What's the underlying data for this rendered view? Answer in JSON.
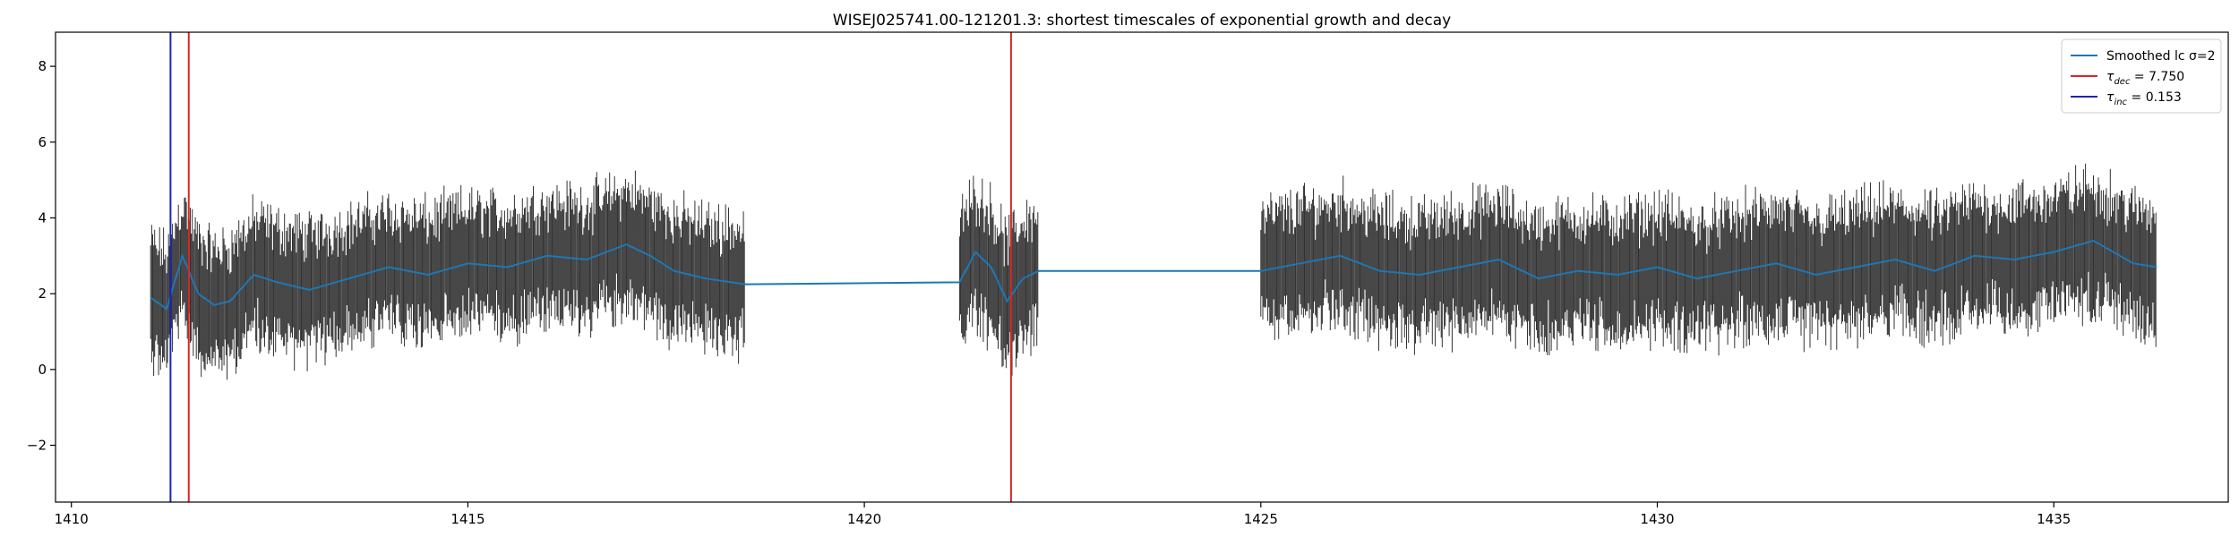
{
  "chart_data": {
    "type": "line",
    "title": "WISEJ025741.00-121201.3: shortest timescales of exponential growth and decay",
    "xlabel": "",
    "ylabel": "",
    "xlim": [
      1409.8,
      1437.2
    ],
    "ylim": [
      -3.5,
      8.9
    ],
    "xticks": [
      1410,
      1415,
      1420,
      1425,
      1430,
      1435
    ],
    "yticks": [
      -2,
      0,
      2,
      4,
      6,
      8
    ],
    "grid": false,
    "legend_position": "top-right",
    "observation_segments": [
      {
        "x_start": 1411.0,
        "x_end": 1418.5,
        "baseline": 2.3,
        "span": 1.4
      },
      {
        "x_start": 1421.2,
        "x_end": 1422.2,
        "baseline": 2.2,
        "span": 1.5
      },
      {
        "x_start": 1425.0,
        "x_end": 1436.3,
        "baseline": 2.6,
        "span": 1.4
      }
    ],
    "series": [
      {
        "name": "Smoothed lc σ=2",
        "color": "#1f77b4",
        "x": [
          1411.0,
          1411.2,
          1411.4,
          1411.6,
          1411.8,
          1412.0,
          1412.3,
          1412.6,
          1413.0,
          1413.5,
          1414.0,
          1414.5,
          1415.0,
          1415.5,
          1416.0,
          1416.5,
          1417.0,
          1417.3,
          1417.6,
          1418.0,
          1418.5,
          1421.2,
          1421.4,
          1421.6,
          1421.8,
          1422.0,
          1422.2,
          1425.0,
          1425.5,
          1426.0,
          1426.5,
          1427.0,
          1427.5,
          1428.0,
          1428.5,
          1429.0,
          1429.5,
          1430.0,
          1430.5,
          1431.0,
          1431.5,
          1432.0,
          1432.5,
          1433.0,
          1433.5,
          1434.0,
          1434.5,
          1435.0,
          1435.5,
          1436.0,
          1436.3
        ],
        "y": [
          1.9,
          1.6,
          3.0,
          2.0,
          1.7,
          1.8,
          2.5,
          2.3,
          2.1,
          2.4,
          2.7,
          2.5,
          2.8,
          2.7,
          3.0,
          2.9,
          3.3,
          3.0,
          2.6,
          2.4,
          2.25,
          2.3,
          3.1,
          2.7,
          1.8,
          2.4,
          2.6,
          2.6,
          2.8,
          3.0,
          2.6,
          2.5,
          2.7,
          2.9,
          2.4,
          2.6,
          2.5,
          2.7,
          2.4,
          2.6,
          2.8,
          2.5,
          2.7,
          2.9,
          2.6,
          3.0,
          2.9,
          3.1,
          3.4,
          2.8,
          2.7
        ]
      }
    ],
    "vertical_lines": [
      {
        "legend": "τ_dec = 7.750",
        "label_main": "τ",
        "label_sub": "dec",
        "label_value": " = 7.750",
        "color": "#d62728",
        "x": [
          1411.48,
          1421.85
        ]
      },
      {
        "legend": "τ_inc = 0.153",
        "label_main": "τ",
        "label_sub": "inc",
        "label_value": " = 0.153",
        "color": "#1f22b4",
        "x": [
          1411.25
        ]
      }
    ],
    "errorbar_color": "#333333"
  }
}
